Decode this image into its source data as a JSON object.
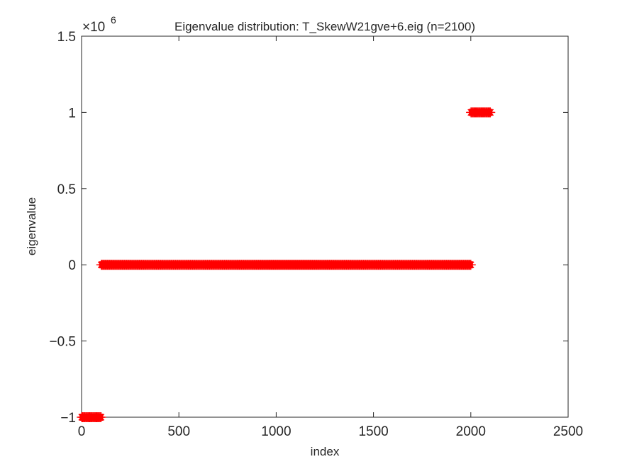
{
  "chart_data": {
    "type": "scatter",
    "title": "Eigenvalue distribution: T_SkewW21gve+6.eig (n=2100)",
    "xlabel": "index",
    "ylabel": "eigenvalue",
    "xlim": [
      0,
      2500
    ],
    "ylim": [
      -1000000,
      1500000
    ],
    "x_ticks": [
      0,
      500,
      1000,
      1500,
      2000,
      2500
    ],
    "x_tick_labels": [
      "0",
      "500",
      "1000",
      "1500",
      "2000",
      "2500"
    ],
    "y_ticks": [
      -1,
      -0.5,
      0,
      0.5,
      1,
      1.5
    ],
    "y_tick_labels": [
      "−1",
      "−0.5",
      "0",
      "0.5",
      "1",
      "1.5"
    ],
    "y_exponent_base": "×10",
    "y_exponent_power": "6",
    "y_scale_factor": 1000000,
    "grid": false,
    "marker": "asterisk",
    "marker_color": "#ff0000",
    "series": [
      {
        "segments": [
          {
            "x_start": 1,
            "x_end": 100,
            "y": -1000000
          },
          {
            "x_start": 101,
            "x_end": 2000,
            "y": 0
          },
          {
            "x_start": 2001,
            "x_end": 2100,
            "y": 1000000
          }
        ]
      }
    ]
  }
}
